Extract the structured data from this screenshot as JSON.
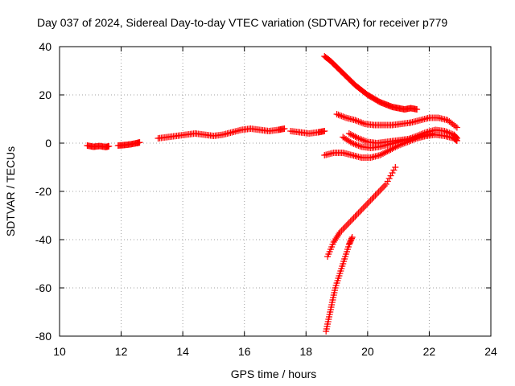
{
  "chart_data": {
    "type": "scatter",
    "title": "Day 037 of 2024, Sidereal Day-to-day VTEC variation (SDTVAR) for receiver p779",
    "xlabel": "GPS time / hours",
    "ylabel": "SDTVAR / TECUs",
    "xlim": [
      10,
      24
    ],
    "ylim": [
      -80,
      40
    ],
    "x_ticks": [
      10,
      12,
      14,
      16,
      18,
      20,
      22,
      24
    ],
    "y_ticks": [
      -80,
      -60,
      -40,
      -20,
      0,
      20,
      40
    ],
    "x_tick_labels": [
      "10",
      "12",
      "14",
      "16",
      "18",
      "20",
      "22",
      "24"
    ],
    "y_tick_labels": [
      "-80",
      "-60",
      "-40",
      "-20",
      "0",
      "20",
      "40"
    ],
    "grid": true,
    "marker": "plus",
    "color": "#ff0000",
    "series": [
      {
        "x": [
          10.9,
          11.1,
          11.3,
          11.5,
          11.6
        ],
        "y": [
          -1.0,
          -1.5,
          -1.2,
          -1.6,
          -1.3
        ]
      },
      {
        "x": [
          11.9,
          12.1,
          12.3,
          12.5,
          12.6
        ],
        "y": [
          -1.0,
          -0.8,
          -0.5,
          0.0,
          0.3
        ]
      },
      {
        "x": [
          13.2,
          13.5,
          13.8,
          14.1,
          14.4,
          14.7,
          15.0,
          15.3,
          15.6,
          15.9,
          16.2,
          16.5,
          16.8,
          17.1,
          17.3
        ],
        "y": [
          2.0,
          2.5,
          3.0,
          3.5,
          4.0,
          3.5,
          3.0,
          3.5,
          4.5,
          5.5,
          6.0,
          5.5,
          5.0,
          5.5,
          6.0
        ]
      },
      {
        "x": [
          17.5,
          17.8,
          18.1,
          18.4,
          18.6
        ],
        "y": [
          5.0,
          4.5,
          4.0,
          4.5,
          5.0
        ]
      },
      {
        "x": [
          18.6,
          18.8,
          19.0,
          19.2,
          19.4,
          19.6,
          19.8,
          20.0,
          20.2,
          20.4,
          20.6,
          20.8,
          21.0,
          21.2,
          21.4,
          21.6
        ],
        "y": [
          36.0,
          34.0,
          31.5,
          29.0,
          26.5,
          24.0,
          22.0,
          20.0,
          18.5,
          17.0,
          16.0,
          15.0,
          14.5,
          14.0,
          14.5,
          14.0
        ]
      },
      {
        "x": [
          19.0,
          19.3,
          19.6,
          19.9,
          20.2,
          20.5,
          20.8,
          21.1,
          21.4,
          21.7,
          22.0,
          22.3,
          22.6,
          22.9
        ],
        "y": [
          12.0,
          10.5,
          9.5,
          8.0,
          7.5,
          7.5,
          7.5,
          8.0,
          8.5,
          9.5,
          10.5,
          10.5,
          9.5,
          6.5
        ]
      },
      {
        "x": [
          18.6,
          18.9,
          19.2,
          19.5,
          19.8,
          20.1,
          20.4,
          20.7,
          21.0,
          21.3,
          21.6,
          21.9,
          22.2,
          22.5,
          22.8,
          22.9
        ],
        "y": [
          -5.0,
          -4.0,
          -4.0,
          -5.0,
          -6.0,
          -6.0,
          -5.0,
          -3.0,
          -1.0,
          0.5,
          2.0,
          3.0,
          3.5,
          3.0,
          2.0,
          1.0
        ]
      },
      {
        "x": [
          19.2,
          19.5,
          19.8,
          20.1,
          20.4,
          20.7,
          21.0,
          21.3,
          21.6,
          21.9,
          22.2,
          22.5,
          22.8,
          22.9
        ],
        "y": [
          2.5,
          0.0,
          -1.5,
          -2.0,
          -1.5,
          -0.5,
          0.5,
          1.5,
          3.0,
          4.5,
          5.5,
          5.0,
          3.5,
          2.0
        ]
      },
      {
        "x": [
          19.4,
          19.7,
          20.0,
          20.3,
          20.6,
          20.9,
          21.2,
          21.5,
          21.8,
          22.1
        ],
        "y": [
          4.0,
          2.0,
          0.5,
          0.0,
          0.5,
          1.0,
          1.5,
          2.0,
          3.0,
          4.0
        ]
      },
      {
        "x": [
          18.7,
          18.9,
          19.1,
          19.4,
          19.7,
          20.0,
          20.3,
          20.6,
          20.9
        ],
        "y": [
          -47.0,
          -41.0,
          -37.0,
          -33.0,
          -29.0,
          -25.0,
          -21.0,
          -17.0,
          -10.0
        ]
      },
      {
        "x": [
          18.65,
          18.75,
          18.85,
          18.95,
          19.1,
          19.25,
          19.4,
          19.5
        ],
        "y": [
          -78.0,
          -72.0,
          -66.0,
          -60.0,
          -54.0,
          -48.0,
          -42.0,
          -39.0
        ]
      }
    ]
  }
}
